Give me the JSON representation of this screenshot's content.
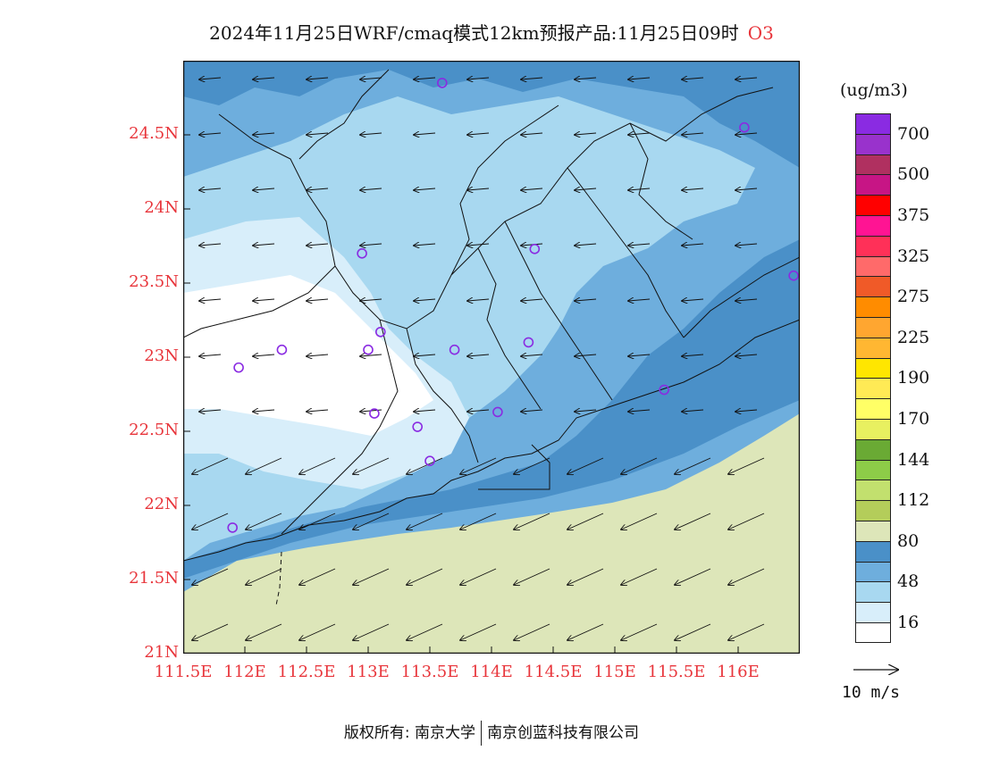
{
  "title": {
    "text": "2024年11月25日WRF/cmaq模式12km预报产品:11月25日09时",
    "variable": "O3"
  },
  "map": {
    "lon_range": [
      111.5,
      116.5
    ],
    "lat_range": [
      21,
      25
    ],
    "land_color": "#dde6b9",
    "boundary_color": "#111111"
  },
  "axes": {
    "y_ticks": [
      {
        "value": 21,
        "label": "21N"
      },
      {
        "value": 21.5,
        "label": "21.5N"
      },
      {
        "value": 22,
        "label": "22N"
      },
      {
        "value": 22.5,
        "label": "22.5N"
      },
      {
        "value": 23,
        "label": "23N"
      },
      {
        "value": 23.5,
        "label": "23.5N"
      },
      {
        "value": 24,
        "label": "24N"
      },
      {
        "value": 24.5,
        "label": "24.5N"
      }
    ],
    "x_ticks": [
      {
        "value": 111.5,
        "label": "111.5E"
      },
      {
        "value": 112,
        "label": "112E"
      },
      {
        "value": 112.5,
        "label": "112.5E"
      },
      {
        "value": 113,
        "label": "113E"
      },
      {
        "value": 113.5,
        "label": "113.5E"
      },
      {
        "value": 114,
        "label": "114E"
      },
      {
        "value": 114.5,
        "label": "114.5E"
      },
      {
        "value": 115,
        "label": "115E"
      },
      {
        "value": 115.5,
        "label": "115.5E"
      },
      {
        "value": 116,
        "label": "116E"
      }
    ],
    "tick_color": "#e8353b"
  },
  "legend": {
    "units": "(ug/m3)",
    "colors_top_to_bottom": [
      "#8a2be2",
      "#9932cc",
      "#b03060",
      "#c71585",
      "#ff0000",
      "#ff1493",
      "#ff3058",
      "#ff6a6a",
      "#f05a28",
      "#ff8c00",
      "#ffa630",
      "#ffb732",
      "#ffe600",
      "#ffea55",
      "#ffff66",
      "#e8f060",
      "#6aaa34",
      "#8dcc48",
      "#c2e06e",
      "#b4cd5a",
      "#dde6b9",
      "#4a90c8",
      "#6eaedd",
      "#a8d8f0",
      "#d8eefa",
      "#ffffff"
    ],
    "labels": [
      {
        "text": "700",
        "boundary": 1
      },
      {
        "text": "500",
        "boundary": 3
      },
      {
        "text": "375",
        "boundary": 5
      },
      {
        "text": "325",
        "boundary": 7
      },
      {
        "text": "275",
        "boundary": 9
      },
      {
        "text": "225",
        "boundary": 11
      },
      {
        "text": "190",
        "boundary": 13
      },
      {
        "text": "170",
        "boundary": 15
      },
      {
        "text": "144",
        "boundary": 17
      },
      {
        "text": "112",
        "boundary": 19
      },
      {
        "text": "80",
        "boundary": 21
      },
      {
        "text": "48",
        "boundary": 23
      },
      {
        "text": "16",
        "boundary": 25
      }
    ]
  },
  "wind_scale": {
    "label": "10 m/s"
  },
  "stations": [
    {
      "lon": 113.6,
      "lat": 24.85
    },
    {
      "lon": 116.05,
      "lat": 24.55
    },
    {
      "lon": 112.95,
      "lat": 23.7
    },
    {
      "lon": 114.35,
      "lat": 23.73
    },
    {
      "lon": 116.45,
      "lat": 23.55
    },
    {
      "lon": 113.1,
      "lat": 23.17
    },
    {
      "lon": 112.3,
      "lat": 23.05
    },
    {
      "lon": 113.0,
      "lat": 23.05
    },
    {
      "lon": 113.7,
      "lat": 23.05
    },
    {
      "lon": 114.3,
      "lat": 23.1
    },
    {
      "lon": 111.95,
      "lat": 22.93
    },
    {
      "lon": 115.4,
      "lat": 22.78
    },
    {
      "lon": 113.05,
      "lat": 22.62
    },
    {
      "lon": 114.05,
      "lat": 22.63
    },
    {
      "lon": 113.4,
      "lat": 22.53
    },
    {
      "lon": 113.5,
      "lat": 22.3
    },
    {
      "lon": 111.9,
      "lat": 21.85
    }
  ],
  "footer": {
    "left": "版权所有: 南京大学",
    "right": "南京创蓝科技有限公司"
  }
}
